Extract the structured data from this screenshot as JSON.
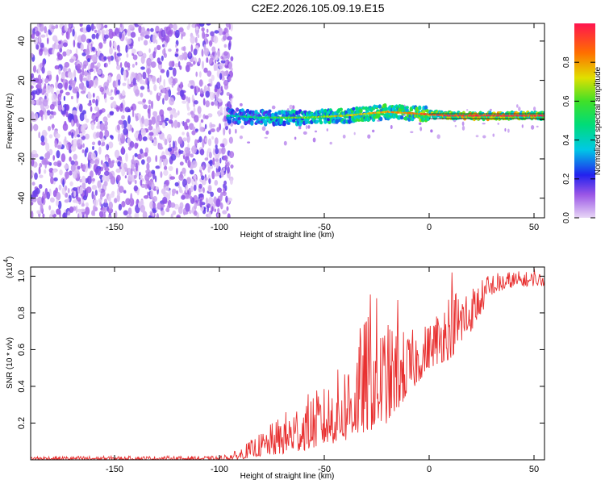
{
  "chart_data": [
    {
      "type": "heatmap",
      "title": "C2E2.2026.105.09.19.E15",
      "xlabel": "Height of straight line (km)",
      "ylabel": "Frequency (Hz)",
      "xlim": [
        -190,
        55
      ],
      "ylim": [
        -50,
        49
      ],
      "x_ticks": [
        -150,
        -100,
        -50,
        0,
        50
      ],
      "y_ticks": [
        -40,
        -20,
        0,
        20,
        40
      ],
      "colorbar": {
        "label": "Normalized spectral amplitude",
        "range": [
          0,
          1
        ],
        "ticks": [
          0.0,
          0.2,
          0.4,
          0.6,
          0.8
        ],
        "tick_labels": [
          "0.0",
          "0.2",
          "0.4",
          "0.6",
          "0.8"
        ]
      },
      "features": {
        "noise_region_x": [
          -190,
          -96
        ],
        "signal_band": [
          {
            "x": -95,
            "freq": 2,
            "amp": 0.35
          },
          {
            "x": -80,
            "freq": 1,
            "amp": 0.45
          },
          {
            "x": -60,
            "freq": 1,
            "amp": 0.55
          },
          {
            "x": -40,
            "freq": 2,
            "amp": 0.65
          },
          {
            "x": -20,
            "freq": 4,
            "amp": 0.7
          },
          {
            "x": -5,
            "freq": 3,
            "amp": 0.8
          },
          {
            "x": 10,
            "freq": 2,
            "amp": 0.9
          },
          {
            "x": 30,
            "freq": 2,
            "amp": 0.95
          },
          {
            "x": 52,
            "freq": 2,
            "amp": 0.9
          }
        ]
      }
    },
    {
      "type": "line",
      "xlabel": "Height of straight line (km)",
      "ylabel": "SNR (10 * v/v)",
      "y_scale_label": "(x10",
      "y_scale_exp": "4",
      "xlim": [
        -190,
        55
      ],
      "ylim": [
        0,
        1.05
      ],
      "x_ticks": [
        -150,
        -100,
        -50,
        0,
        50
      ],
      "y_ticks": [
        0.2,
        0.4,
        0.6,
        0.8,
        1.0
      ],
      "y_tick_labels": [
        "0.2",
        "0.4",
        "0.6",
        "0.8",
        "1.0"
      ],
      "series": [
        {
          "name": "SNR",
          "color": "#e83030",
          "envelope": [
            {
              "x": -190,
              "lo": 0.0,
              "hi": 0.02
            },
            {
              "x": -100,
              "lo": 0.0,
              "hi": 0.02
            },
            {
              "x": -92,
              "lo": 0.0,
              "hi": 0.05
            },
            {
              "x": -80,
              "lo": 0.02,
              "hi": 0.15
            },
            {
              "x": -70,
              "lo": 0.03,
              "hi": 0.25
            },
            {
              "x": -60,
              "lo": 0.05,
              "hi": 0.35
            },
            {
              "x": -50,
              "lo": 0.08,
              "hi": 0.4
            },
            {
              "x": -40,
              "lo": 0.1,
              "hi": 0.55
            },
            {
              "x": -30,
              "lo": 0.15,
              "hi": 0.8
            },
            {
              "x": -20,
              "lo": 0.2,
              "hi": 0.75
            },
            {
              "x": -10,
              "lo": 0.35,
              "hi": 0.7
            },
            {
              "x": 0,
              "lo": 0.5,
              "hi": 0.75
            },
            {
              "x": 10,
              "lo": 0.55,
              "hi": 0.95
            },
            {
              "x": 20,
              "lo": 0.7,
              "hi": 0.95
            },
            {
              "x": 30,
              "lo": 0.9,
              "hi": 1.02
            },
            {
              "x": 40,
              "lo": 0.94,
              "hi": 1.03
            },
            {
              "x": 55,
              "lo": 0.95,
              "hi": 1.02
            }
          ],
          "peaks": [
            {
              "x": -28,
              "y": 0.9
            },
            {
              "x": -25,
              "y": 0.88
            },
            {
              "x": -15,
              "y": 0.87
            },
            {
              "x": 11,
              "y": 1.02
            },
            {
              "x": 28,
              "y": 1.0
            },
            {
              "x": 50,
              "y": 1.04
            }
          ]
        }
      ]
    }
  ]
}
